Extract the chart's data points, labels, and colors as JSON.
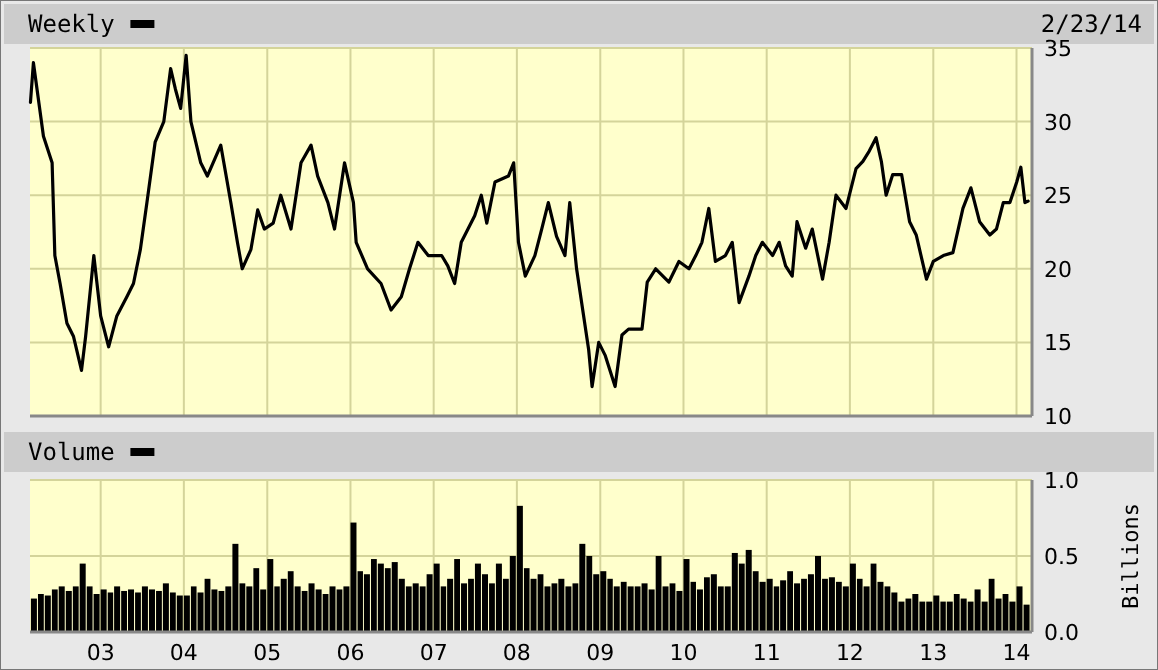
{
  "chart_data": [
    {
      "type": "line",
      "title": "Weekly",
      "annotations": [
        "2/23/14"
      ],
      "xlim": [
        "2002-02-25",
        "2014-03-10"
      ],
      "ylim": [
        10,
        35
      ],
      "yticks": [
        10,
        15,
        20,
        25,
        30,
        35
      ],
      "xticks": [
        {
          "value": "2003-01-01",
          "label": null
        },
        {
          "value": "2004-01-01",
          "label": null
        },
        {
          "value": "2005-01-01",
          "label": null
        },
        {
          "value": "2006-01-01",
          "label": null
        },
        {
          "value": "2007-01-01",
          "label": null
        },
        {
          "value": "2008-01-01",
          "label": null
        },
        {
          "value": "2009-01-01",
          "label": null
        },
        {
          "value": "2010-01-01",
          "label": null
        },
        {
          "value": "2011-01-01",
          "label": null
        },
        {
          "value": "2012-01-01",
          "label": null
        },
        {
          "value": "2013-01-01",
          "label": null
        },
        {
          "value": "2014-01-01",
          "label": null
        }
      ],
      "tick_labels": "y",
      "grid": true,
      "x": [
        "2002-02-27",
        "2002-03-12",
        "2002-04-25",
        "2002-06-02",
        "2002-06-14",
        "2002-07-07",
        "2002-08-06",
        "2002-09-04",
        "2002-10-09",
        "2002-10-27",
        "2002-12-02",
        "2003-01-01",
        "2003-02-05",
        "2003-03-13",
        "2003-04-26",
        "2003-05-25",
        "2003-06-24",
        "2003-07-23",
        "2003-08-28",
        "2003-10-05",
        "2003-11-04",
        "2003-11-25",
        "2003-12-18",
        "2004-01-11",
        "2004-02-01",
        "2004-03-15",
        "2004-04-13",
        "2004-06-11",
        "2004-07-25",
        "2004-08-23",
        "2004-09-13",
        "2004-10-21",
        "2004-11-20",
        "2004-12-19",
        "2005-01-27",
        "2005-03-01",
        "2005-04-15",
        "2005-05-29",
        "2005-07-12",
        "2005-08-10",
        "2005-09-24",
        "2005-10-23",
        "2005-12-06",
        "2006-01-14",
        "2006-01-26",
        "2006-03-17",
        "2006-05-15",
        "2006-06-28",
        "2006-08-12",
        "2006-09-17",
        "2006-10-24",
        "2006-12-08",
        "2007-02-05",
        "2007-03-04",
        "2007-04-03",
        "2007-05-02",
        "2007-06-30",
        "2007-07-29",
        "2007-08-22",
        "2007-09-27",
        "2007-11-25",
        "2007-12-18",
        "2008-01-08",
        "2008-02-07",
        "2008-03-20",
        "2008-04-19",
        "2008-05-18",
        "2008-06-23",
        "2008-07-30",
        "2008-08-20",
        "2008-09-19",
        "2008-11-11",
        "2008-11-26",
        "2008-12-25",
        "2009-01-23",
        "2009-03-07",
        "2009-04-06",
        "2009-05-05",
        "2009-07-03",
        "2009-07-26",
        "2009-09-01",
        "2009-10-29",
        "2009-12-12",
        "2010-01-25",
        "2010-02-24",
        "2010-03-23",
        "2010-04-22",
        "2010-05-21",
        "2010-07-04",
        "2010-08-03",
        "2010-09-02",
        "2010-10-15",
        "2010-11-14",
        "2010-12-13",
        "2011-01-27",
        "2011-02-25",
        "2011-03-25",
        "2011-04-23",
        "2011-05-14",
        "2011-06-21",
        "2011-07-20",
        "2011-09-03",
        "2011-10-02",
        "2011-11-01",
        "2011-12-15",
        "2012-01-28",
        "2012-02-27",
        "2012-03-26",
        "2012-04-25",
        "2012-05-18",
        "2012-06-08",
        "2012-07-07",
        "2012-08-15",
        "2012-09-19",
        "2012-10-18",
        "2012-12-02",
        "2013-01-01",
        "2013-02-14",
        "2013-03-28",
        "2013-05-11",
        "2013-06-15",
        "2013-07-23",
        "2013-09-06",
        "2013-10-05",
        "2013-11-04",
        "2013-12-03",
        "2014-01-02",
        "2014-01-20",
        "2014-02-07",
        "2014-02-21"
      ],
      "series": [
        {
          "color": "#000000",
          "values": [
            31.3,
            34.0,
            29.0,
            27.2,
            20.9,
            19.0,
            16.3,
            15.4,
            13.1,
            15.4,
            20.9,
            16.8,
            14.7,
            16.8,
            18.1,
            19.0,
            21.3,
            24.5,
            28.6,
            30.0,
            33.6,
            32.2,
            30.9,
            34.5,
            30.0,
            27.2,
            26.3,
            28.4,
            24.5,
            21.8,
            20.0,
            21.3,
            24.0,
            22.7,
            23.1,
            25.0,
            22.7,
            27.2,
            28.4,
            26.3,
            24.5,
            22.7,
            27.2,
            24.5,
            21.8,
            20.0,
            19.0,
            17.2,
            18.1,
            20.0,
            21.8,
            20.9,
            20.9,
            20.2,
            19.0,
            21.8,
            23.6,
            25.0,
            23.1,
            25.9,
            26.3,
            27.2,
            21.8,
            19.5,
            20.9,
            22.7,
            24.5,
            22.2,
            20.9,
            24.5,
            20.0,
            14.5,
            12.0,
            15.0,
            14.1,
            12.0,
            15.5,
            15.9,
            15.9,
            19.1,
            20.0,
            19.1,
            20.5,
            20.0,
            20.9,
            21.8,
            24.1,
            20.5,
            20.9,
            21.8,
            17.7,
            19.5,
            20.9,
            21.8,
            20.9,
            21.8,
            20.2,
            19.5,
            23.2,
            21.4,
            22.7,
            19.3,
            21.8,
            25.0,
            24.1,
            26.8,
            27.3,
            28.0,
            28.9,
            27.3,
            25.0,
            26.4,
            26.4,
            23.2,
            22.3,
            19.3,
            20.5,
            20.9,
            21.1,
            24.1,
            25.5,
            23.2,
            22.3,
            22.7,
            24.5,
            24.5,
            25.9,
            26.9,
            24.5,
            24.6
          ]
        }
      ]
    },
    {
      "type": "bar",
      "title": "Volume",
      "ylabel": "Billions",
      "xlim": [
        "2002-02-25",
        "2014-03-10"
      ],
      "ylim": [
        0,
        1
      ],
      "yticks": [
        {
          "value": 0,
          "label": "0.0"
        },
        {
          "value": 0.5,
          "label": "0.5"
        },
        {
          "value": 1,
          "label": "1.0"
        }
      ],
      "xticks": [
        {
          "value": "2003-01-01",
          "label": "03"
        },
        {
          "value": "2004-01-01",
          "label": "04"
        },
        {
          "value": "2005-01-01",
          "label": "05"
        },
        {
          "value": "2006-01-01",
          "label": "06"
        },
        {
          "value": "2007-01-01",
          "label": "07"
        },
        {
          "value": "2008-01-01",
          "label": "08"
        },
        {
          "value": "2009-01-01",
          "label": "09"
        },
        {
          "value": "2010-01-01",
          "label": "10"
        },
        {
          "value": "2011-01-01",
          "label": "11"
        },
        {
          "value": "2012-01-01",
          "label": "12"
        },
        {
          "value": "2013-01-01",
          "label": "13"
        },
        {
          "value": "2014-01-01",
          "label": "14"
        }
      ],
      "grid": true,
      "x": [
        "2002-03",
        "2002-04",
        "2002-05",
        "2002-06",
        "2002-07",
        "2002-08",
        "2002-09",
        "2002-10",
        "2002-11",
        "2002-12",
        "2003-01",
        "2003-02",
        "2003-03",
        "2003-04",
        "2003-05",
        "2003-06",
        "2003-07",
        "2003-08",
        "2003-09",
        "2003-10",
        "2003-11",
        "2003-12",
        "2004-01",
        "2004-02",
        "2004-03",
        "2004-04",
        "2004-05",
        "2004-06",
        "2004-07",
        "2004-08",
        "2004-09",
        "2004-10",
        "2004-11",
        "2004-12",
        "2005-01",
        "2005-02",
        "2005-03",
        "2005-04",
        "2005-05",
        "2005-06",
        "2005-07",
        "2005-08",
        "2005-09",
        "2005-10",
        "2005-11",
        "2005-12",
        "2006-01",
        "2006-02",
        "2006-03",
        "2006-04",
        "2006-05",
        "2006-06",
        "2006-07",
        "2006-08",
        "2006-09",
        "2006-10",
        "2006-11",
        "2006-12",
        "2007-01",
        "2007-02",
        "2007-03",
        "2007-04",
        "2007-05",
        "2007-06",
        "2007-07",
        "2007-08",
        "2007-09",
        "2007-10",
        "2007-11",
        "2007-12",
        "2008-01",
        "2008-02",
        "2008-03",
        "2008-04",
        "2008-05",
        "2008-06",
        "2008-07",
        "2008-08",
        "2008-09",
        "2008-10",
        "2008-11",
        "2008-12",
        "2009-01",
        "2009-02",
        "2009-03",
        "2009-04",
        "2009-05",
        "2009-06",
        "2009-07",
        "2009-08",
        "2009-09",
        "2009-10",
        "2009-11",
        "2009-12",
        "2010-01",
        "2010-02",
        "2010-03",
        "2010-04",
        "2010-05",
        "2010-06",
        "2010-07",
        "2010-08",
        "2010-09",
        "2010-10",
        "2010-11",
        "2010-12",
        "2011-01",
        "2011-02",
        "2011-03",
        "2011-04",
        "2011-05",
        "2011-06",
        "2011-07",
        "2011-08",
        "2011-09",
        "2011-10",
        "2011-11",
        "2011-12",
        "2012-01",
        "2012-02",
        "2012-03",
        "2012-04",
        "2012-05",
        "2012-06",
        "2012-07",
        "2012-08",
        "2012-09",
        "2012-10",
        "2012-11",
        "2012-12",
        "2013-01",
        "2013-02",
        "2013-03",
        "2013-04",
        "2013-05",
        "2013-06",
        "2013-07",
        "2013-08",
        "2013-09",
        "2013-10",
        "2013-11",
        "2013-12",
        "2014-01",
        "2014-02"
      ],
      "series": [
        {
          "color": "#000000",
          "values": [
            0.22,
            0.25,
            0.24,
            0.28,
            0.3,
            0.27,
            0.3,
            0.45,
            0.3,
            0.25,
            0.28,
            0.26,
            0.3,
            0.27,
            0.28,
            0.26,
            0.3,
            0.28,
            0.27,
            0.32,
            0.26,
            0.24,
            0.24,
            0.3,
            0.26,
            0.35,
            0.28,
            0.27,
            0.3,
            0.58,
            0.32,
            0.3,
            0.42,
            0.28,
            0.48,
            0.3,
            0.35,
            0.4,
            0.3,
            0.27,
            0.32,
            0.28,
            0.25,
            0.3,
            0.28,
            0.3,
            0.72,
            0.4,
            0.38,
            0.48,
            0.45,
            0.42,
            0.46,
            0.35,
            0.3,
            0.32,
            0.3,
            0.38,
            0.45,
            0.3,
            0.35,
            0.48,
            0.32,
            0.35,
            0.45,
            0.38,
            0.32,
            0.45,
            0.35,
            0.5,
            0.83,
            0.42,
            0.35,
            0.38,
            0.3,
            0.32,
            0.35,
            0.3,
            0.32,
            0.58,
            0.5,
            0.38,
            0.4,
            0.35,
            0.3,
            0.33,
            0.3,
            0.3,
            0.32,
            0.28,
            0.5,
            0.3,
            0.32,
            0.27,
            0.48,
            0.33,
            0.28,
            0.36,
            0.38,
            0.3,
            0.3,
            0.52,
            0.45,
            0.54,
            0.4,
            0.33,
            0.35,
            0.3,
            0.34,
            0.4,
            0.32,
            0.35,
            0.38,
            0.5,
            0.35,
            0.36,
            0.33,
            0.3,
            0.45,
            0.35,
            0.3,
            0.45,
            0.33,
            0.3,
            0.26,
            0.2,
            0.22,
            0.25,
            0.2,
            0.2,
            0.24,
            0.2,
            0.2,
            0.25,
            0.22,
            0.2,
            0.28,
            0.2,
            0.35,
            0.22,
            0.25,
            0.2,
            0.3,
            0.18
          ]
        }
      ]
    }
  ]
}
